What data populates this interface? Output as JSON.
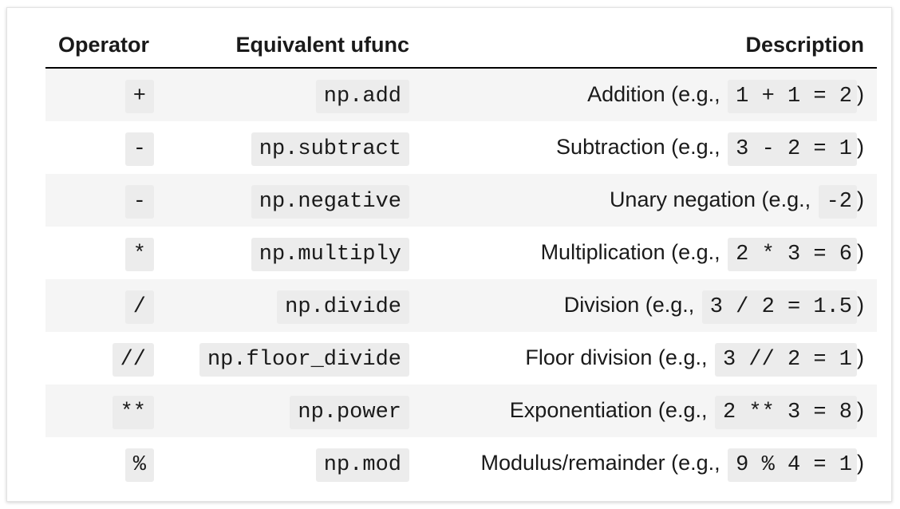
{
  "table": {
    "headers": [
      "Operator",
      "Equivalent ufunc",
      "Description"
    ],
    "rows": [
      {
        "operator": "+",
        "ufunc": "np.add",
        "desc_text": "Addition (e.g., ",
        "desc_code": "1 + 1 = 2",
        "desc_suffix": ")"
      },
      {
        "operator": "-",
        "ufunc": "np.subtract",
        "desc_text": "Subtraction (e.g., ",
        "desc_code": "3 - 2 = 1",
        "desc_suffix": ")"
      },
      {
        "operator": "-",
        "ufunc": "np.negative",
        "desc_text": "Unary negation (e.g., ",
        "desc_code": "-2",
        "desc_suffix": ")"
      },
      {
        "operator": "*",
        "ufunc": "np.multiply",
        "desc_text": "Multiplication (e.g., ",
        "desc_code": "2 * 3 = 6",
        "desc_suffix": ")"
      },
      {
        "operator": "/",
        "ufunc": "np.divide",
        "desc_text": "Division (e.g., ",
        "desc_code": "3 / 2 = 1.5",
        "desc_suffix": ")"
      },
      {
        "operator": "//",
        "ufunc": "np.floor_divide",
        "desc_text": "Floor division (e.g., ",
        "desc_code": "3 // 2 = 1",
        "desc_suffix": ")"
      },
      {
        "operator": "**",
        "ufunc": "np.power",
        "desc_text": "Exponentiation (e.g., ",
        "desc_code": "2 ** 3 = 8",
        "desc_suffix": ")"
      },
      {
        "operator": "%",
        "ufunc": "np.mod",
        "desc_text": "Modulus/remainder (e.g., ",
        "desc_code": "9 % 4 = 1",
        "desc_suffix": ")"
      }
    ]
  }
}
